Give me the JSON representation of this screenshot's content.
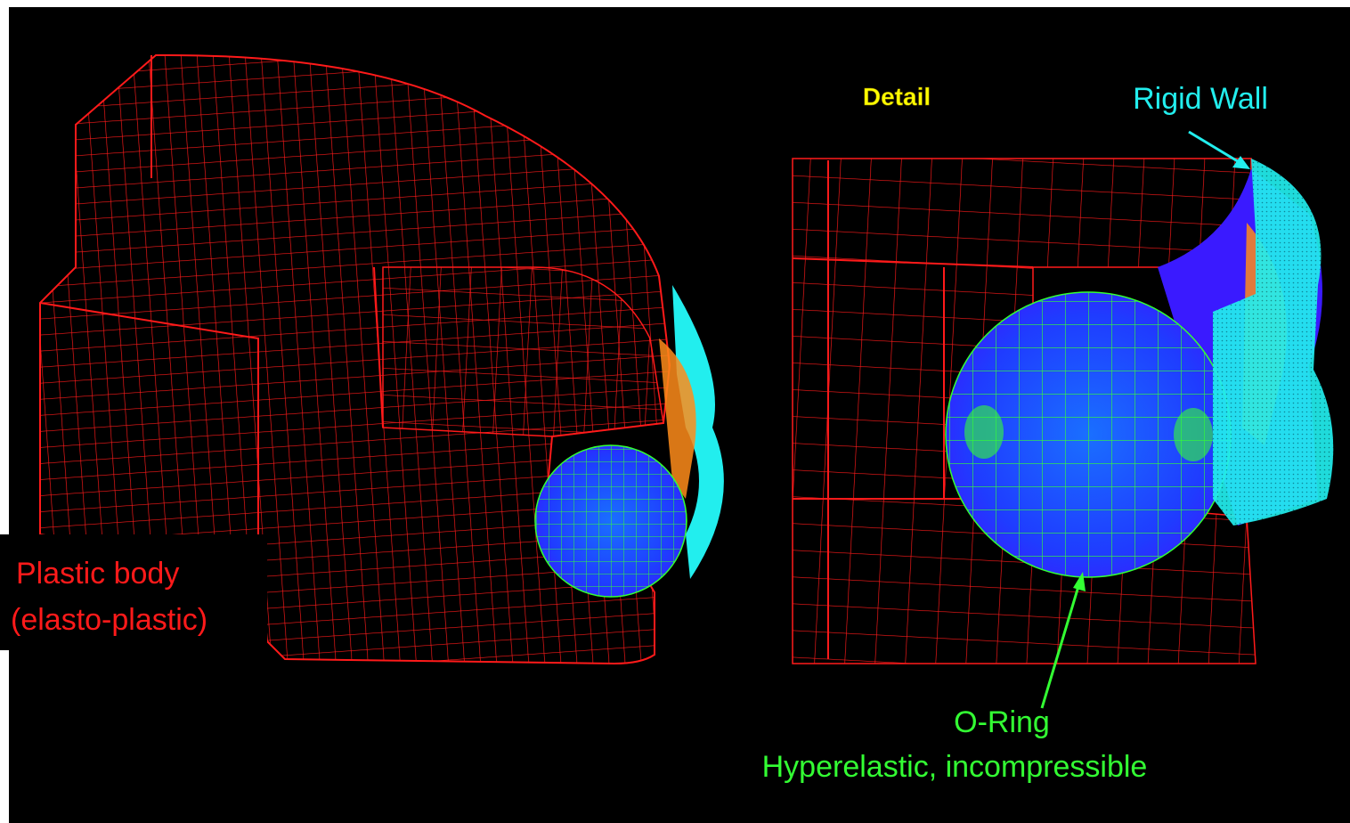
{
  "detail_label": "Detail",
  "rigid_wall_label": "Rigid Wall",
  "plastic_body_label": {
    "line1": "Plastic body",
    "line2": "(elasto-plastic)"
  },
  "o_ring_label": {
    "line1": "O-Ring",
    "line2": "Hyperelastic, incompressible"
  }
}
